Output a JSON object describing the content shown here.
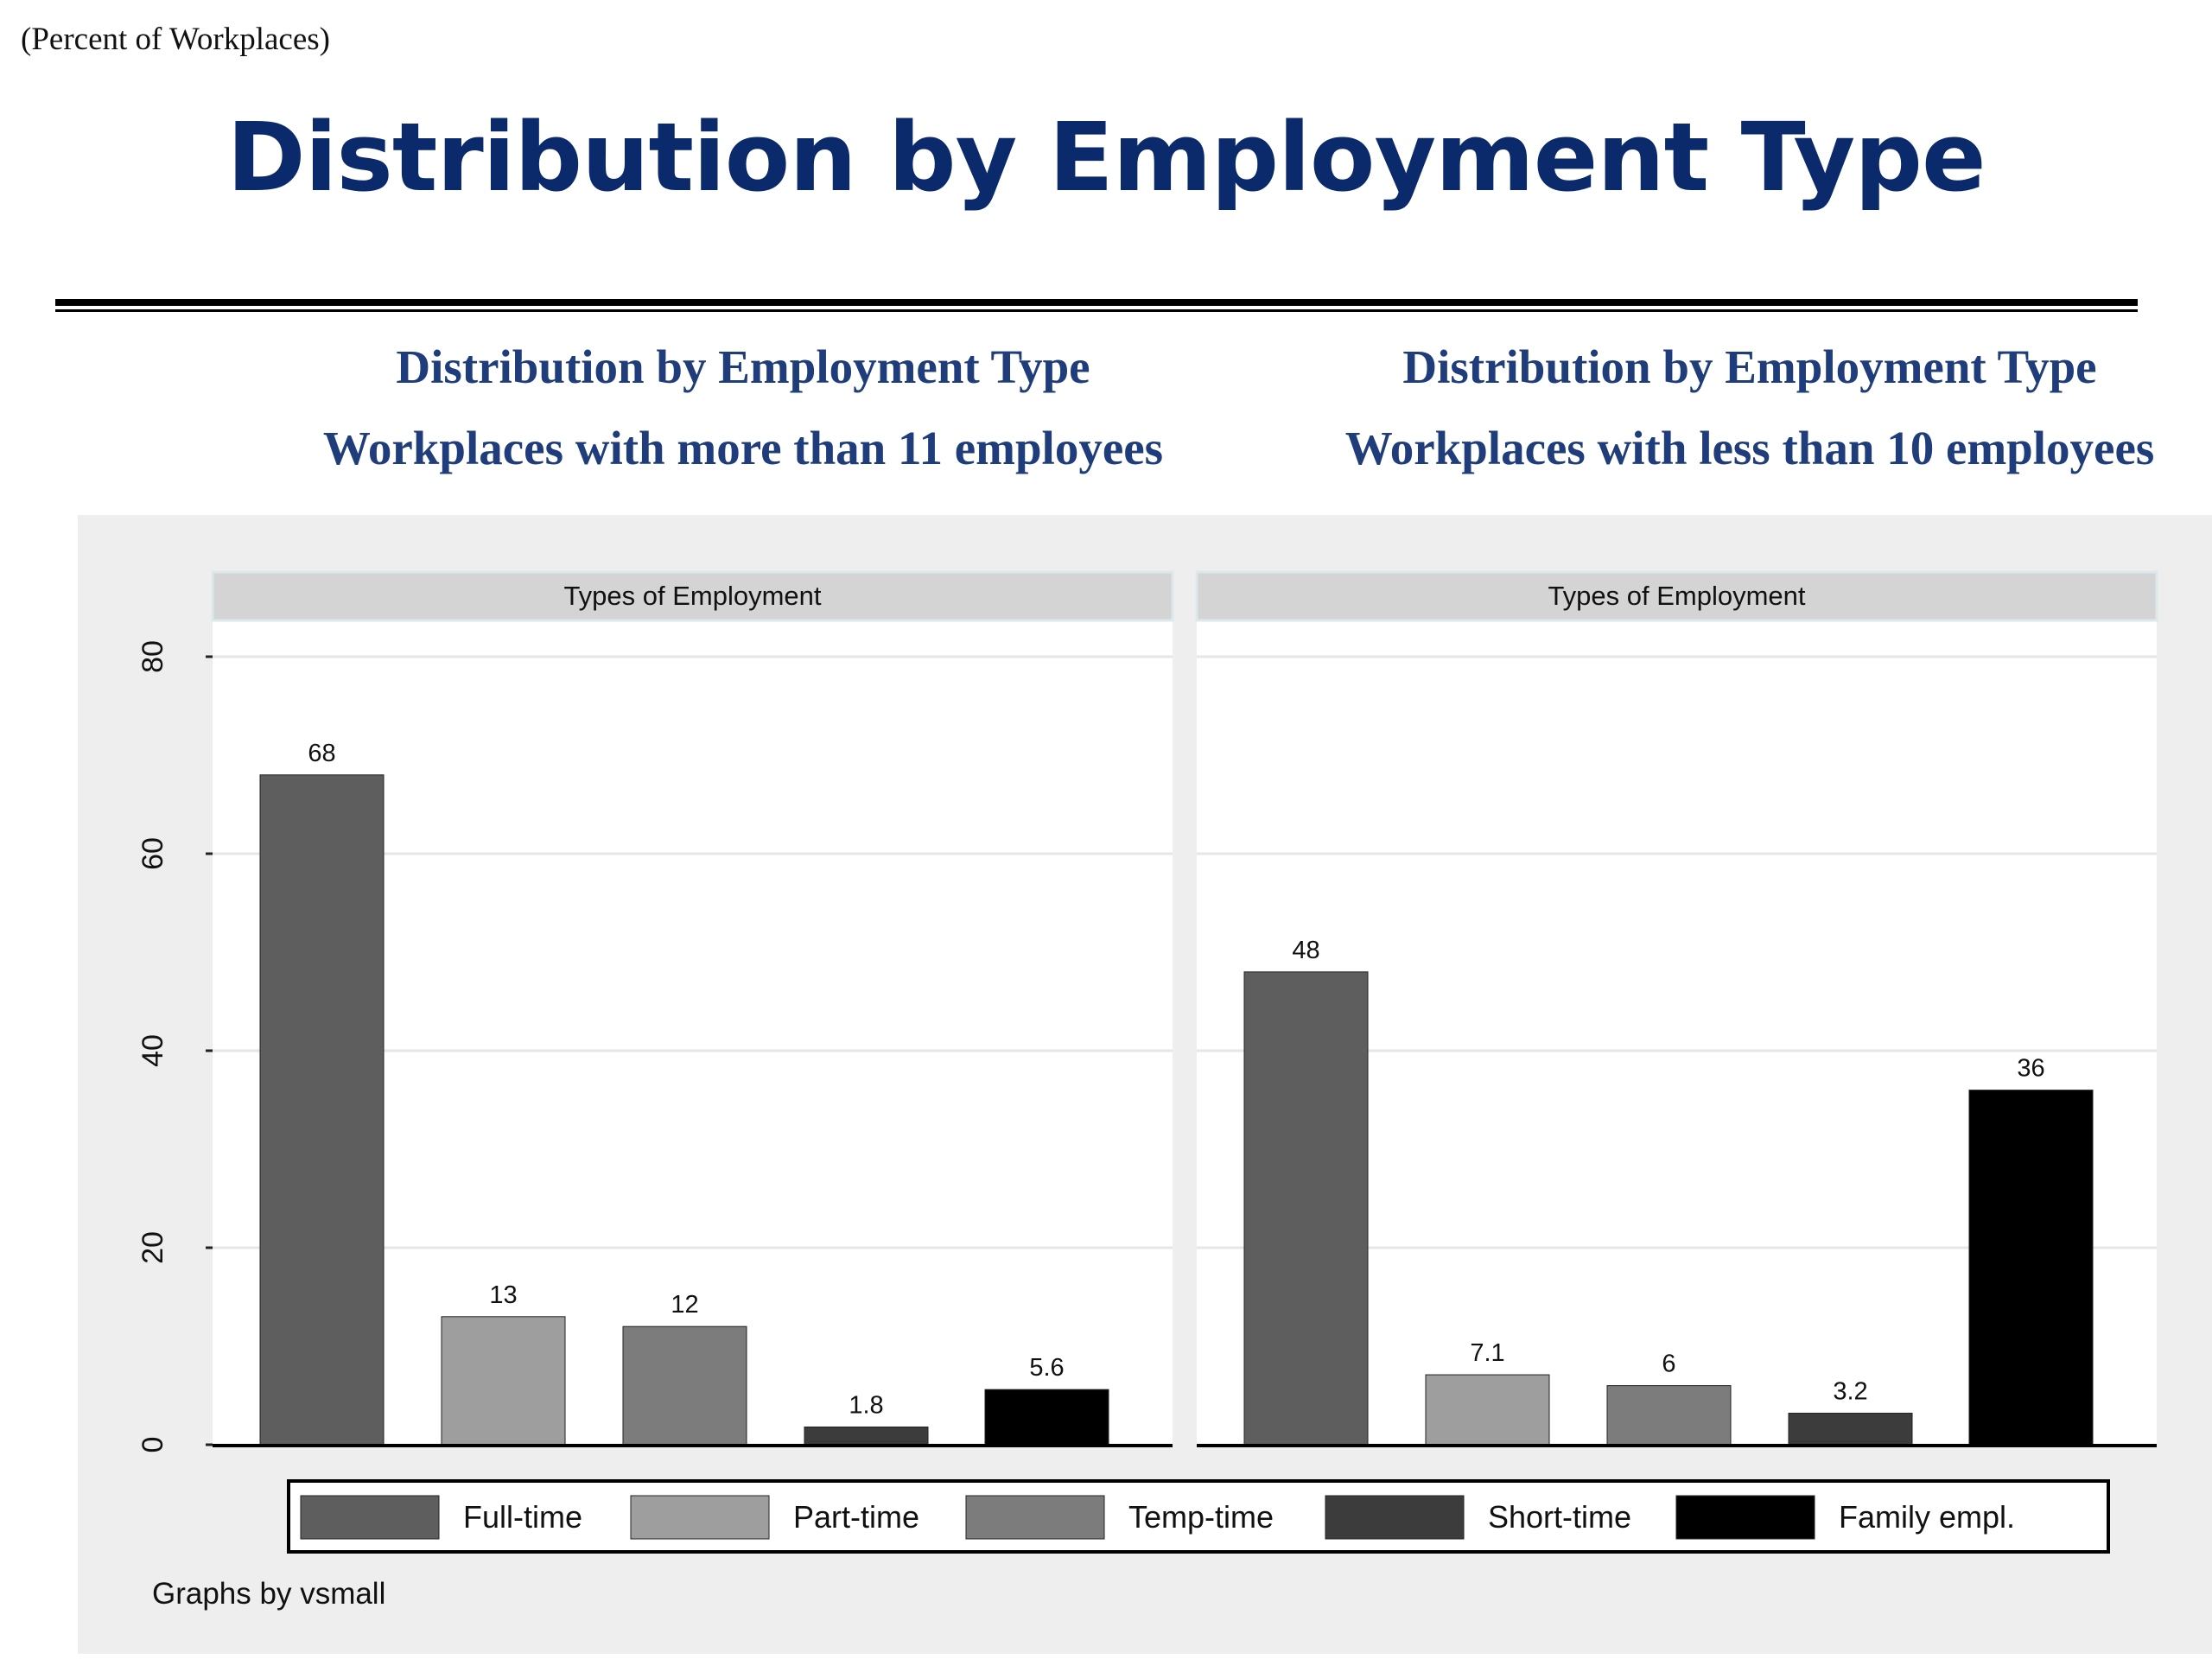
{
  "page": {
    "unit_note": "(Percent of Workplaces)",
    "main_title": "Distribution by Employment Type",
    "colors": {
      "title": "#0b2a6b",
      "subtitle": "#1f3d7a"
    }
  },
  "panels_header": [
    {
      "line1": "Distribution by Employment Type",
      "line2": "Workplaces with more than 11 employees"
    },
    {
      "line1": "Distribution by Employment Type",
      "line2": "Workplaces with less than 10 employees"
    }
  ],
  "chart_data": {
    "type": "bar",
    "ylim": [
      0,
      80
    ],
    "yticks": [
      0,
      20,
      40,
      60,
      80
    ],
    "grid": true,
    "legend_position": "bottom",
    "note": "Graphs by vsmall",
    "series": [
      {
        "name": "Full-time",
        "color": "#5e5e5e"
      },
      {
        "name": "Part-time",
        "color": "#9e9e9e"
      },
      {
        "name": "Temp-time",
        "color": "#7c7c7c"
      },
      {
        "name": "Short-time",
        "color": "#3c3c3c"
      },
      {
        "name": "Family empl.",
        "color": "#000000"
      }
    ],
    "panels": [
      {
        "strip": "Types of Employment",
        "values": [
          68,
          13,
          12,
          1.8,
          5.6
        ],
        "labels": [
          "68",
          "13",
          "12",
          "1.8",
          "5.6"
        ]
      },
      {
        "strip": "Types of Employment",
        "values": [
          48,
          7.1,
          6,
          3.2,
          36
        ],
        "labels": [
          "48",
          "7.1",
          "6",
          "3.2",
          "36"
        ]
      }
    ]
  }
}
